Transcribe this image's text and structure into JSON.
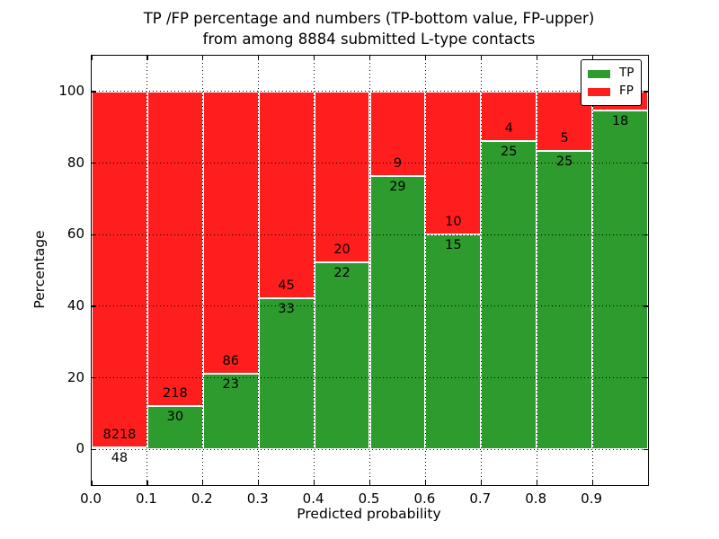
{
  "title": {
    "line1": "TP /FP percentage and numbers (TP-bottom value, FP-upper)",
    "line2": "from among 8884 submitted L-type contacts"
  },
  "axes": {
    "x_label": "Predicted probability",
    "y_label": "Percentage",
    "x_tick_labels": [
      "0.0",
      "0.1",
      "0.2",
      "0.3",
      "0.4",
      "0.5",
      "0.6",
      "0.7",
      "0.8",
      "0.9"
    ],
    "x_tick_values": [
      0,
      0.1,
      0.2,
      0.3,
      0.4,
      0.5,
      0.6,
      0.7,
      0.8,
      0.9
    ],
    "y_tick_labels": [
      "0",
      "20",
      "40",
      "60",
      "80",
      "100"
    ],
    "y_tick_values": [
      0,
      20,
      40,
      60,
      80,
      100
    ],
    "x_range": [
      0,
      1
    ],
    "y_range": [
      -10,
      110
    ],
    "grid": true,
    "grid_style": "dotted"
  },
  "legend": {
    "position": "upper-right",
    "entries": [
      {
        "label": "TP",
        "color": "#2e9b2e"
      },
      {
        "label": "FP",
        "color": "#ff1e1e"
      }
    ]
  },
  "colors": {
    "tp": "#2e9b2e",
    "fp": "#ff1e1e",
    "bar_edge": "#ffffff",
    "background": "#ffffff",
    "text": "#000000"
  },
  "chart_data": {
    "type": "bar",
    "stacked": true,
    "normalized_to_percent": true,
    "title": "TP /FP percentage and numbers (TP-bottom value, FP-upper) from among 8884 submitted L-type contacts",
    "xlabel": "Predicted probability",
    "ylabel": "Percentage",
    "xlim": [
      0,
      1
    ],
    "ylim": [
      -10,
      110
    ],
    "total_submitted": 8884,
    "bin_width": 0.1,
    "bins": [
      "0.0-0.1",
      "0.1-0.2",
      "0.2-0.3",
      "0.3-0.4",
      "0.4-0.5",
      "0.5-0.6",
      "0.6-0.7",
      "0.7-0.8",
      "0.8-0.9",
      "0.9-1.0"
    ],
    "bin_starts": [
      0.0,
      0.1,
      0.2,
      0.3,
      0.4,
      0.5,
      0.6,
      0.7,
      0.8,
      0.9
    ],
    "series": [
      {
        "name": "TP",
        "color": "#2e9b2e",
        "counts": [
          48,
          30,
          23,
          33,
          22,
          29,
          15,
          25,
          25,
          18
        ],
        "count_labels": [
          "48",
          "30",
          "23",
          "33",
          "22",
          "29",
          "15",
          "25",
          "25",
          "18"
        ],
        "percent": [
          0.58,
          12.1,
          21.1,
          42.31,
          52.38,
          76.32,
          60.0,
          86.21,
          83.33,
          94.74
        ]
      },
      {
        "name": "FP",
        "color": "#ff1e1e",
        "counts": [
          8218,
          218,
          86,
          45,
          20,
          9,
          10,
          4,
          5,
          null
        ],
        "count_labels": [
          "8218",
          "218",
          "86",
          "45",
          "20",
          "9",
          "10",
          "4",
          "5",
          ""
        ],
        "percent": [
          99.42,
          87.9,
          78.9,
          57.69,
          47.62,
          23.68,
          40.0,
          13.79,
          16.67,
          5.26
        ]
      }
    ],
    "label_note": "TP-bottom value, FP-upper; last FP label hidden behind legend"
  }
}
